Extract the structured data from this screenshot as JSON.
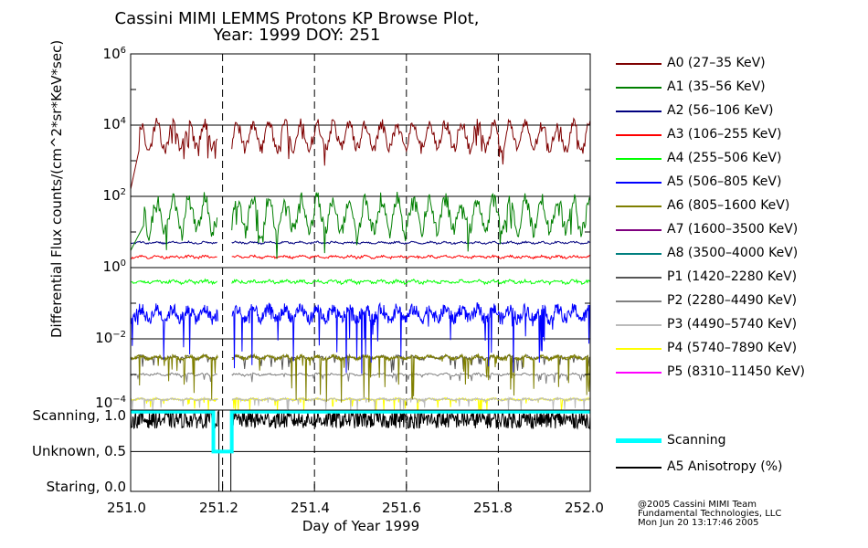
{
  "title_line1": "Cassini MIMI LEMMS Protons KP Browse Plot,",
  "title_line2": "Year: 1999 DOY: 251",
  "chart_data": {
    "type": "line",
    "title": "Cassini MIMI LEMMS Protons KP Browse Plot, Year: 1999 DOY: 251",
    "ylabel": "Differential Flux counts/(cm^2*sr*KeV*sec)",
    "xlabel": "Day of Year 1999",
    "yscale": "log",
    "ylim": [
      0.0001,
      1000000
    ],
    "xlim": [
      251.0,
      252.0
    ],
    "yticks": [
      {
        "base": "10",
        "exp": "6"
      },
      {
        "base": "10",
        "exp": "4"
      },
      {
        "base": "10",
        "exp": "2"
      },
      {
        "base": "10",
        "exp": "0"
      },
      {
        "base": "10",
        "exp": "−2"
      },
      {
        "base": "10",
        "exp": "−4"
      }
    ],
    "xticks": [
      "251.0",
      "251.2",
      "251.4",
      "251.6",
      "251.8",
      "252.0"
    ],
    "data_gap": [
      251.19,
      251.22
    ],
    "series": [
      {
        "name": "A0 (27–35 KeV)",
        "color": "#7f0000",
        "typical_value": 5000
      },
      {
        "name": "A1 (35–56 KeV)",
        "color": "#007f00",
        "typical_value": 30
      },
      {
        "name": "A2 (56–106 KeV)",
        "color": "#00007f",
        "typical_value": 5
      },
      {
        "name": "A3 (106–255 KeV)",
        "color": "#ff0000",
        "typical_value": 2
      },
      {
        "name": "A4 (255–506 KeV)",
        "color": "#00ff00",
        "typical_value": 0.4
      },
      {
        "name": "A5 (506–805 KeV)",
        "color": "#0000ff",
        "typical_value": 0.05
      },
      {
        "name": "A6 (805–1600 KeV)",
        "color": "#7f7f00",
        "typical_value": 0.003
      },
      {
        "name": "A7 (1600–3500 KeV)",
        "color": "#7f007f",
        "typical_value": null
      },
      {
        "name": "A8 (3500–4000 KeV)",
        "color": "#007f7f",
        "typical_value": null
      },
      {
        "name": "P1 (1420–2280 KeV)",
        "color": "#555555",
        "typical_value": 0.003
      },
      {
        "name": "P2 (2280–4490 KeV)",
        "color": "#808080",
        "typical_value": 0.001
      },
      {
        "name": "P3 (4490–5740 KeV)",
        "color": "#bbbbbb",
        "typical_value": 0.0002
      },
      {
        "name": "P4 (5740–7890 KeV)",
        "color": "#ffff00",
        "typical_value": 0.0002
      },
      {
        "name": "P5 (8310–11450 KeV)",
        "color": "#ff00ff",
        "typical_value": null
      }
    ],
    "lower_panel": {
      "yticks": [
        "Scanning, 1.0",
        "Unknown, 0.5",
        "Staring, 0.0"
      ],
      "series": [
        {
          "name": "Scanning",
          "color": "#00ffff",
          "segments": [
            {
              "x": [
                251.0,
                251.18
              ],
              "y": 1.0
            },
            {
              "x": [
                251.18,
                251.22
              ],
              "y": 0.5
            },
            {
              "x": [
                251.22,
                252.0
              ],
              "y": 1.0
            }
          ]
        },
        {
          "name": "A5 Anisotropy (%)",
          "color": "#000000",
          "typical_value": 0.9
        }
      ]
    }
  },
  "credits": {
    "line1": "@2005 Cassini MIMI Team",
    "line2": "Fundamental Technologies, LLC",
    "line3": "Mon Jun 20 13:17:46 2005"
  }
}
